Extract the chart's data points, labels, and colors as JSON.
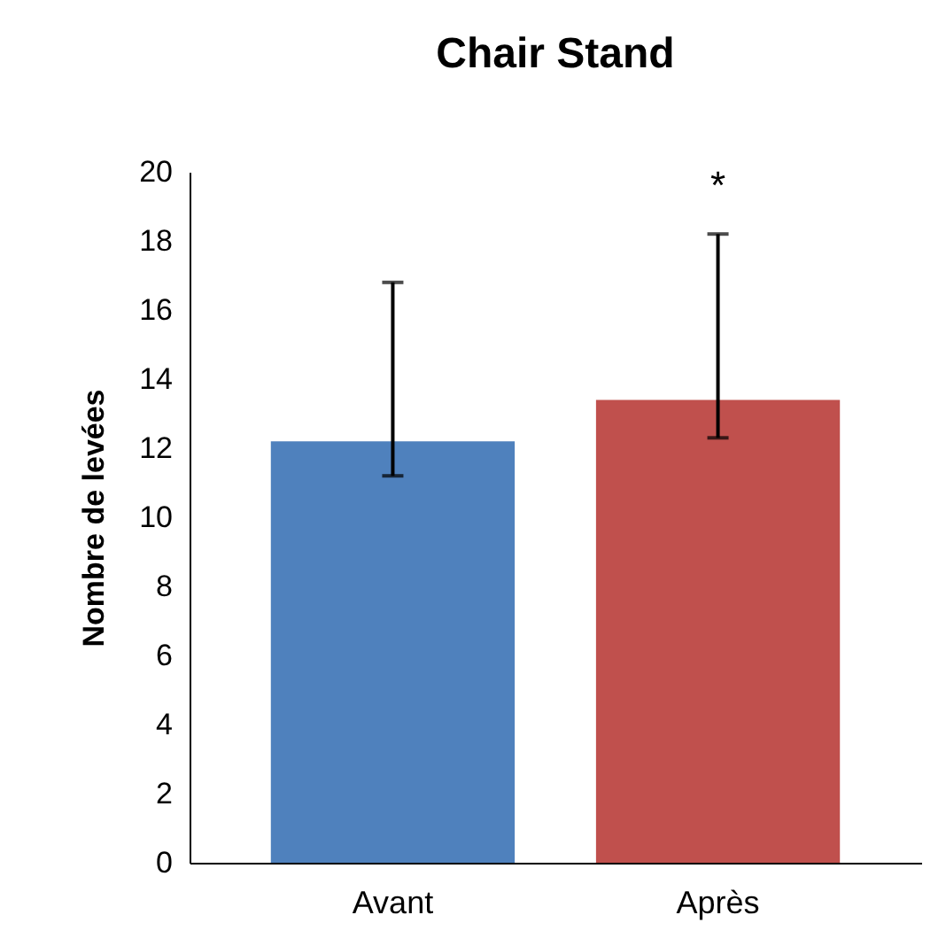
{
  "chart_data": {
    "type": "bar",
    "title": "Chair Stand",
    "ylabel": "Nombre de levées",
    "categories": [
      "Avant",
      "Après"
    ],
    "values": [
      12.2,
      13.4
    ],
    "colors": [
      "#4f81bd",
      "#c0504d"
    ],
    "errors": [
      [
        11.2,
        16.8
      ],
      [
        12.3,
        18.2
      ]
    ],
    "ylim": [
      0,
      20
    ],
    "yticks": [
      0,
      2,
      4,
      6,
      8,
      10,
      12,
      14,
      16,
      18,
      20
    ],
    "grid": false,
    "annotations": [
      "*"
    ]
  }
}
